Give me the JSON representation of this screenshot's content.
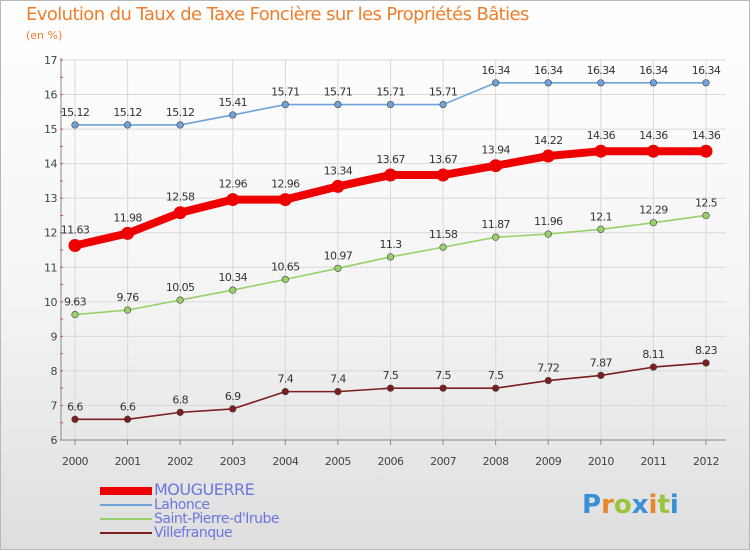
{
  "title": "Evolution du Taux de Taxe Foncière sur les Propriétés Bâties",
  "subtitle": "(en %)",
  "logo": {
    "letters": [
      "P",
      "r",
      "o",
      "x",
      "i",
      "t",
      "i"
    ],
    "colors": [
      "#3a8fd6",
      "#e8862a",
      "#9ac43c",
      "#3a8fd6",
      "#e8862a",
      "#9ac43c",
      "#3a8fd6"
    ]
  },
  "chart_data": {
    "type": "line",
    "x": [
      "2000",
      "2001",
      "2002",
      "2003",
      "2004",
      "2005",
      "2006",
      "2007",
      "2008",
      "2009",
      "2010",
      "2011",
      "2012"
    ],
    "ylim": [
      6,
      17
    ],
    "yticks": [
      "6",
      "7",
      "8",
      "9",
      "10",
      "11",
      "12",
      "13",
      "14",
      "15",
      "16",
      "17"
    ],
    "grid": true,
    "legend_position": "bottom-left",
    "series": [
      {
        "name": "MOUGUERRE",
        "color": "#ee0000",
        "values": [
          11.63,
          11.98,
          12.58,
          12.96,
          12.96,
          13.34,
          13.67,
          13.67,
          13.94,
          14.22,
          14.36,
          14.36,
          14.36
        ],
        "labels": [
          "11.63",
          "11.98",
          "12.58",
          "12.96",
          "12.96",
          "13.34",
          "13.67",
          "13.67",
          "13.94",
          "14.22",
          "14.36",
          "14.36",
          "14.36"
        ]
      },
      {
        "name": "Lahonce",
        "color": "#6fa3d8",
        "values": [
          15.12,
          15.12,
          15.12,
          15.41,
          15.71,
          15.71,
          15.71,
          15.71,
          16.34,
          16.34,
          16.34,
          16.34,
          16.34
        ],
        "labels": [
          "15.12",
          "15.12",
          "15.12",
          "15.41",
          "15.71",
          "15.71",
          "15.71",
          "15.71",
          "16.34",
          "16.34",
          "16.34",
          "16.34",
          "16.34"
        ]
      },
      {
        "name": "Saint-Pierre-d'Irube",
        "color": "#9ad06a",
        "values": [
          9.63,
          9.76,
          10.05,
          10.34,
          10.65,
          10.97,
          11.3,
          11.58,
          11.87,
          11.96,
          12.1,
          12.29,
          12.5
        ],
        "labels": [
          "9.63",
          "9.76",
          "10.05",
          "10.34",
          "10.65",
          "10.97",
          "11.3",
          "11.58",
          "11.87",
          "11.96",
          "12.1",
          "12.29",
          "12.5"
        ]
      },
      {
        "name": "Villefranque",
        "color": "#7a1e1e",
        "values": [
          6.6,
          6.6,
          6.8,
          6.9,
          7.4,
          7.4,
          7.5,
          7.5,
          7.5,
          7.72,
          7.87,
          8.11,
          8.23
        ],
        "labels": [
          "6.6",
          "6.6",
          "6.8",
          "6.9",
          "7.4",
          "7.4",
          "7.5",
          "7.5",
          "7.5",
          "7.72",
          "7.87",
          "8.11",
          "8.23"
        ]
      }
    ]
  }
}
